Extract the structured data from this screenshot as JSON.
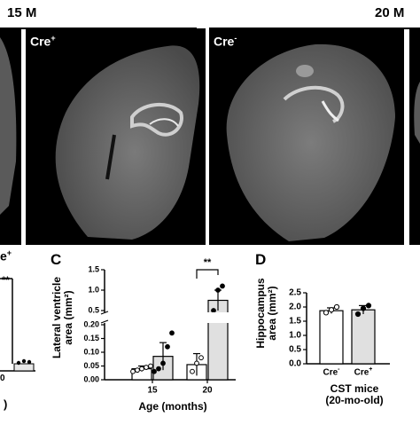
{
  "headers": {
    "left": "15 M",
    "right": "20 M"
  },
  "panels": {
    "left_partial_label": "",
    "cre_pos_15": "Cre",
    "cre_pos_15_sup": "+",
    "cre_neg_20": "Cre",
    "cre_neg_20_sup": "-"
  },
  "leftcut": {
    "label_frag": "e",
    "label_sup": "+",
    "sig": "**",
    "tick": "0",
    "bottom": ")"
  },
  "panel_c": {
    "letter": "C"
  },
  "panel_d": {
    "letter": "D"
  },
  "chart_data": [
    {
      "type": "bar",
      "panel": "C",
      "ylabel": "Lateral ventricle area (mm²)",
      "ylabel_line1": "Lateral ventricle",
      "ylabel_line2": "area (mm²)",
      "xlabel": "Age (months)",
      "categories": [
        "15",
        "20"
      ],
      "yticks": [
        "0.00",
        "0.05",
        "0.10",
        "0.15",
        "0.20",
        "0.5",
        "1.0",
        "1.5"
      ],
      "axis_break": true,
      "series": [
        {
          "values": [
            0.04,
            0.055
          ],
          "errors": [
            0.01,
            0.04
          ],
          "fill": "#ffffff"
        },
        {
          "values": [
            0.085,
            0.75
          ],
          "errors": [
            0.05,
            0.25
          ],
          "fill": "#e0e0e0"
        }
      ],
      "points": [
        [
          [
            0.03,
            0.035,
            0.04,
            0.045,
            0.05
          ],
          [
            0.03,
            0.04,
            0.06,
            0.12,
            0.17
          ]
        ],
        [
          [
            0.03,
            0.06,
            0.08
          ],
          [
            0.5,
            1.0,
            1.1
          ]
        ]
      ],
      "significance": "**"
    },
    {
      "type": "bar",
      "panel": "D",
      "ylabel": "Hippocampus area (mm²)",
      "ylabel_line1": "Hippocampus",
      "ylabel_line2": "area (mm²)",
      "xlabel": "CST mice",
      "xlabel2": "(20-mo-old)",
      "categories": [
        "Cre",
        "Cre"
      ],
      "category_sups": [
        "-",
        "+"
      ],
      "ylim": [
        0,
        2.5
      ],
      "yticks": [
        "0.0",
        "0.5",
        "1.0",
        "1.5",
        "2.0",
        "2.5"
      ],
      "series": [
        {
          "values": [
            1.87,
            1.9
          ],
          "errors": [
            0.1,
            0.15
          ]
        }
      ],
      "points": [
        [
          1.8,
          1.9,
          2.0
        ],
        [
          1.75,
          1.95,
          2.05
        ]
      ]
    }
  ]
}
